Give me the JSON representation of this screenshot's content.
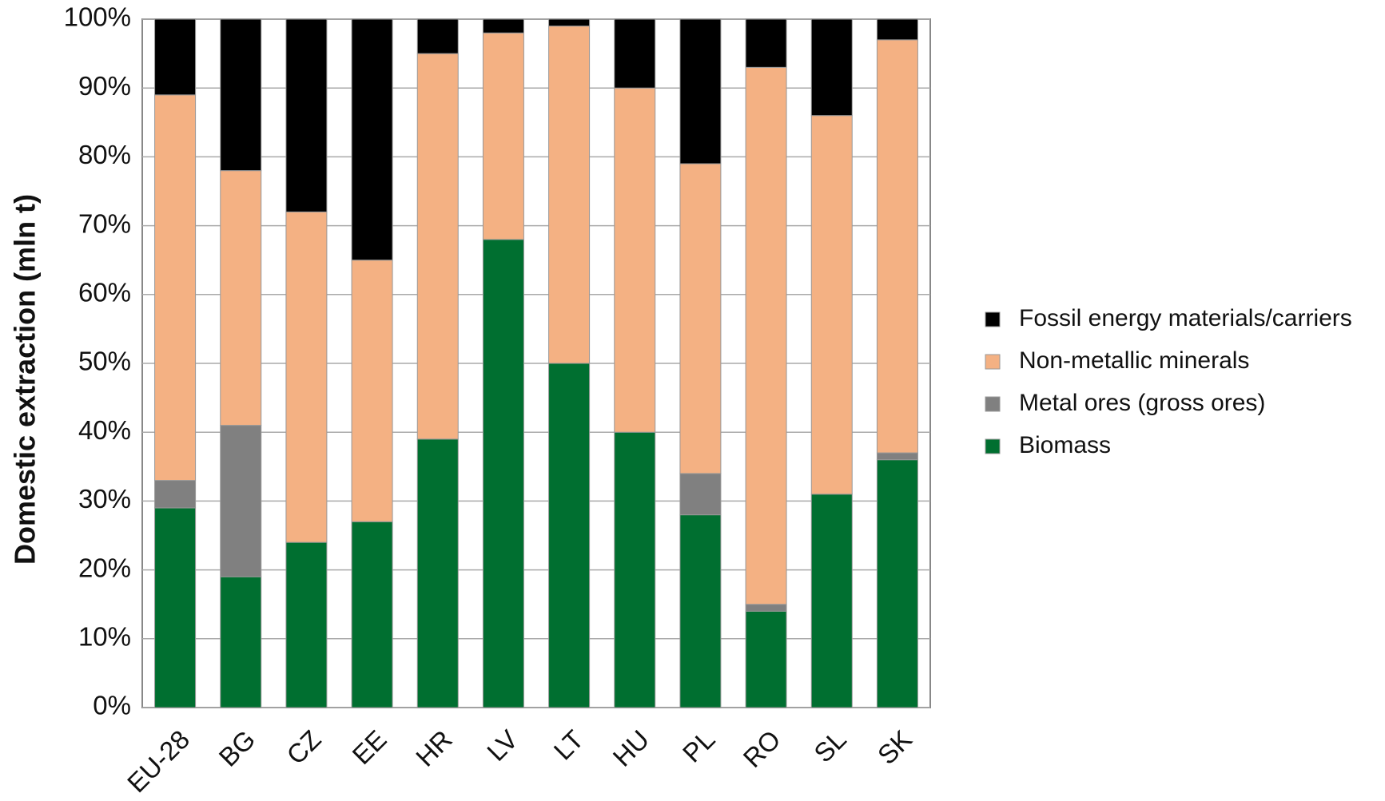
{
  "chart_data": {
    "type": "stacked_bar",
    "y_label": "Domestic extraction (mln t)",
    "categories": [
      "EU-28",
      "BG",
      "CZ",
      "EE",
      "HR",
      "LV",
      "LT",
      "HU",
      "PL",
      "RO",
      "SL",
      "SK"
    ],
    "series": [
      {
        "name": "Biomass",
        "color": "#006f30",
        "values": [
          29,
          19,
          24,
          27,
          39,
          68,
          50,
          40,
          28,
          14,
          31,
          36
        ]
      },
      {
        "name": "Metal ores (gross ores)",
        "color": "#808080",
        "values": [
          4,
          22,
          0,
          0,
          0,
          0,
          0,
          0,
          6,
          1,
          0,
          1
        ]
      },
      {
        "name": "Non-metallic minerals",
        "color": "#f4b183",
        "values": [
          56,
          37,
          48,
          38,
          56,
          30,
          49,
          50,
          45,
          78,
          55,
          60
        ]
      },
      {
        "name": "Fossil energy materials/carriers",
        "color": "#000000",
        "values": [
          11,
          22,
          28,
          35,
          5,
          2,
          1,
          10,
          21,
          7,
          14,
          3
        ]
      }
    ],
    "ylim": [
      0,
      100
    ],
    "yticks": [
      {
        "value": 0,
        "label": "0%"
      },
      {
        "value": 10,
        "label": "10%"
      },
      {
        "value": 20,
        "label": "20%"
      },
      {
        "value": 30,
        "label": "30%"
      },
      {
        "value": 40,
        "label": "40%"
      },
      {
        "value": 50,
        "label": "50%"
      },
      {
        "value": 60,
        "label": "60%"
      },
      {
        "value": 70,
        "label": "70%"
      },
      {
        "value": 80,
        "label": "80%"
      },
      {
        "value": 90,
        "label": "90%"
      },
      {
        "value": 100,
        "label": "100%"
      }
    ],
    "grid": true,
    "legend": "right"
  }
}
